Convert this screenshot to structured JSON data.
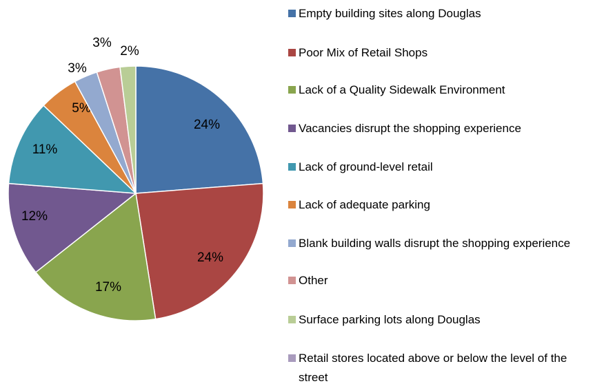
{
  "chart_data": {
    "type": "pie",
    "categories": [
      "Empty building sites along Douglas",
      "Poor Mix of Retail Shops",
      "Lack of a Quality Sidewalk Environment",
      "Vacancies disrupt the shopping experience",
      "Lack of ground-level retail",
      "Lack of adequate parking",
      "Blank building walls disrupt the shopping experience",
      "Other",
      "Surface parking lots along Douglas",
      "Retail stores located above or below the level of the street"
    ],
    "values": [
      24,
      24,
      17,
      12,
      11,
      5,
      3,
      3,
      2,
      0
    ],
    "value_labels": [
      "24%",
      "24%",
      "17%",
      "12%",
      "11%",
      "5%",
      "3%",
      "3%",
      "2%",
      null
    ],
    "colors": [
      "#4572A7",
      "#AA4643",
      "#89A54E",
      "#71588F",
      "#4198AF",
      "#DB843D",
      "#93A9CF",
      "#D19392",
      "#B9CD96",
      "#A99BBD"
    ],
    "legend": "right"
  }
}
